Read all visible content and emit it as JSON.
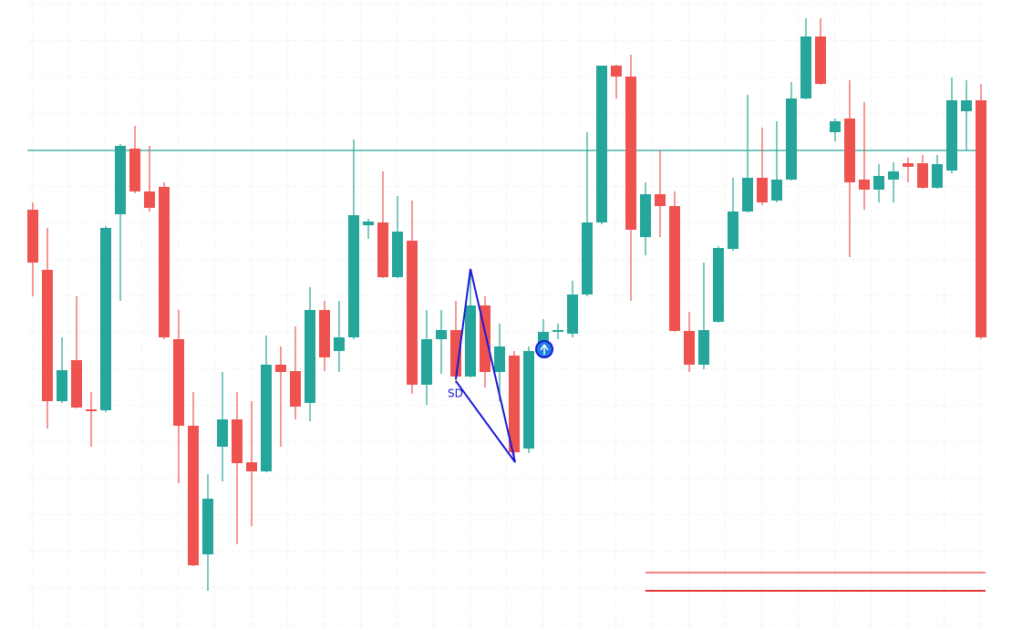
{
  "chart_data": {
    "type": "candlestick",
    "ylim": [
      0,
      691
    ],
    "up_color": "#26a69a",
    "down_color": "#ef5350",
    "open": [
      461,
      395,
      251,
      296,
      242,
      241,
      456,
      528,
      481,
      486,
      319,
      224,
      83,
      201,
      231,
      184,
      174,
      291,
      284,
      249,
      351,
      306,
      321,
      444,
      447,
      387,
      427,
      269,
      319,
      329,
      278,
      356,
      283,
      301,
      199,
      311,
      327,
      325,
      368,
      447,
      619,
      607,
      431,
      478,
      465,
      328,
      291,
      338,
      418,
      459,
      496,
      471,
      494,
      583,
      651,
      546,
      561,
      494,
      483,
      494,
      512,
      512,
      485,
      504,
      569,
      581
    ],
    "high": [
      469,
      441,
      321,
      366,
      261,
      443,
      533,
      553,
      531,
      491,
      351,
      261,
      171,
      283,
      261,
      251,
      323,
      311,
      333,
      376,
      361,
      361,
      538,
      451,
      503,
      476,
      471,
      351,
      351,
      361,
      391,
      366,
      336,
      306,
      311,
      341,
      336,
      383,
      546,
      619,
      620,
      631,
      491,
      526,
      481,
      349,
      403,
      421,
      496,
      587,
      551,
      558,
      601,
      671,
      671,
      561,
      603,
      579,
      511,
      513,
      518,
      521,
      521,
      606,
      603,
      599
    ],
    "low": [
      366,
      221,
      249,
      243,
      201,
      239,
      361,
      479,
      459,
      319,
      161,
      70,
      43,
      163,
      94,
      114,
      173,
      201,
      231,
      229,
      284,
      283,
      319,
      429,
      386,
      386,
      259,
      247,
      281,
      271,
      277,
      266,
      251,
      191,
      194,
      299,
      319,
      321,
      366,
      445,
      583,
      361,
      411,
      431,
      327,
      283,
      286,
      337,
      416,
      458,
      466,
      469,
      493,
      582,
      598,
      536,
      409,
      461,
      469,
      469,
      491,
      484,
      484,
      501,
      526,
      319
    ],
    "close": [
      403,
      251,
      285,
      244,
      240,
      441,
      531,
      481,
      463,
      321,
      224,
      71,
      144,
      231,
      183,
      174,
      291,
      283,
      245,
      351,
      299,
      321,
      455,
      448,
      387,
      437,
      269,
      319,
      329,
      278,
      356,
      283,
      311,
      195,
      306,
      327,
      329,
      368,
      447,
      619,
      607,
      439,
      478,
      465,
      328,
      291,
      329,
      419,
      459,
      496,
      469,
      494,
      583,
      651,
      599,
      558,
      491,
      483,
      498,
      503,
      508,
      485,
      511,
      581,
      581,
      321
    ],
    "levels": [
      {
        "value": 526,
        "color": "#26a69a"
      },
      {
        "value": 63,
        "color": "#e53935"
      },
      {
        "value": 43,
        "color": "#e53935"
      }
    ],
    "annotations": [
      {
        "text": "SD",
        "color": "#1a1ad6"
      }
    ]
  }
}
